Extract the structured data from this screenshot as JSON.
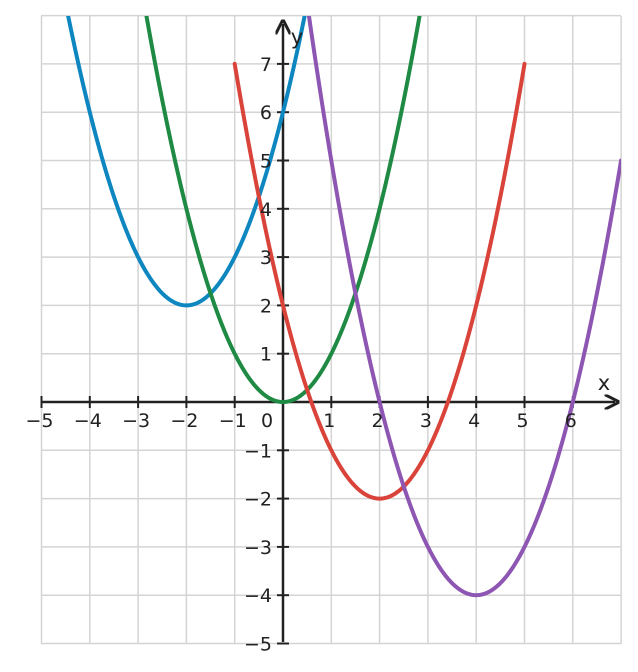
{
  "chart_data": {
    "type": "line",
    "title": "",
    "xlabel": "x",
    "ylabel": "y",
    "xlim": [
      -5,
      7
    ],
    "ylim": [
      -5,
      8
    ],
    "grid": true,
    "x_ticks": [
      -5,
      -4,
      -3,
      -2,
      -1,
      0,
      1,
      2,
      3,
      4,
      5,
      6
    ],
    "y_ticks": [
      -5,
      -4,
      -3,
      -2,
      -1,
      1,
      2,
      3,
      4,
      5,
      6,
      7
    ],
    "x_tick_labels": [
      "−5",
      "−4",
      "−3",
      "−2",
      "−1",
      "0",
      "1",
      "2",
      "3",
      "4",
      "5",
      "6"
    ],
    "y_tick_labels": [
      "−5",
      "−4",
      "−3",
      "−2",
      "−1",
      "1",
      "2",
      "3",
      "4",
      "5",
      "6",
      "7"
    ],
    "series": [
      {
        "color": "#0e86c0",
        "vertex": [
          -2,
          2
        ],
        "a": 1,
        "x": [
          -5,
          -4,
          -3,
          -2,
          -1,
          0,
          0.5
        ],
        "y": [
          11,
          6,
          3,
          2,
          3,
          6,
          8.25
        ]
      },
      {
        "color": "#1f8a43",
        "vertex": [
          0,
          0
        ],
        "a": 1,
        "x": [
          -3,
          -2,
          -1,
          0,
          1,
          2,
          3
        ],
        "y": [
          9,
          4,
          1,
          0,
          1,
          4,
          9
        ]
      },
      {
        "color": "#d9433a",
        "vertex": [
          2,
          -2
        ],
        "a": 1,
        "x": [
          -1,
          0,
          1,
          2,
          3,
          4,
          5
        ],
        "y": [
          7,
          2,
          -1,
          -2,
          -1,
          2,
          7
        ]
      },
      {
        "color": "#8e56b3",
        "vertex": [
          4,
          -4
        ],
        "a": 1,
        "x": [
          0,
          1,
          2,
          3,
          4,
          5,
          6,
          7
        ],
        "y": [
          12,
          5,
          0,
          -3,
          -4,
          -3,
          0,
          5
        ]
      }
    ]
  }
}
